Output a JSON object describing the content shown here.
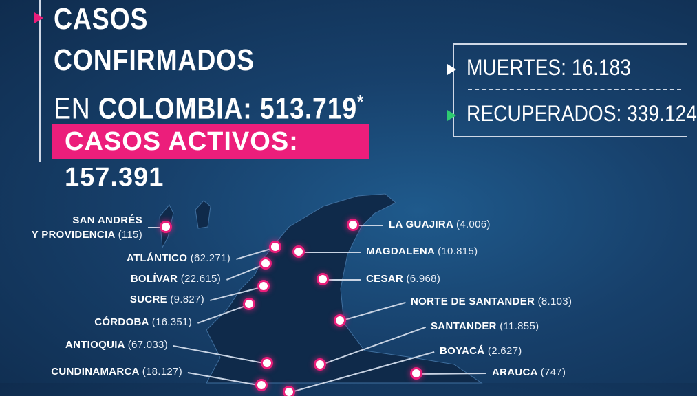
{
  "header": {
    "line1": "CASOS",
    "line2": "CONFIRMADOS",
    "line3_prefix": "EN",
    "line3_bold": "COLOMBIA:",
    "total": "513.719",
    "asterisk": "*",
    "activos": "CASOS ACTIVOS: 157.391"
  },
  "stats": {
    "muertes": "MUERTES: 16.183",
    "recuperados": "RECUPERADOS: 339.124"
  },
  "colors": {
    "accent_pink": "#ec1e7b",
    "accent_green": "#2ecc71",
    "background": "#17406b"
  },
  "departments": [
    {
      "name": "SAN ANDRÉS",
      "name2": "Y PROVIDENCIA",
      "count": "(115)"
    },
    {
      "name": "ATLÁNTICO",
      "count": "(62.271)"
    },
    {
      "name": "BOLÍVAR",
      "count": "(22.615)"
    },
    {
      "name": "SUCRE",
      "count": "(9.827)"
    },
    {
      "name": "CÓRDOBA",
      "count": "(16.351)"
    },
    {
      "name": "ANTIOQUIA",
      "count": "(67.033)"
    },
    {
      "name": "CUNDINAMARCA",
      "count": "(18.127)"
    },
    {
      "name": "LA GUAJIRA",
      "count": "(4.006)"
    },
    {
      "name": "MAGDALENA",
      "count": "(10.815)"
    },
    {
      "name": "CESAR",
      "count": "(6.968)"
    },
    {
      "name": "NORTE DE SANTANDER",
      "count": "(8.103)"
    },
    {
      "name": "SANTANDER",
      "count": "(11.855)"
    },
    {
      "name": "BOYACÁ",
      "count": "(2.627)"
    },
    {
      "name": "ARAUCA",
      "count": "(747)"
    }
  ]
}
